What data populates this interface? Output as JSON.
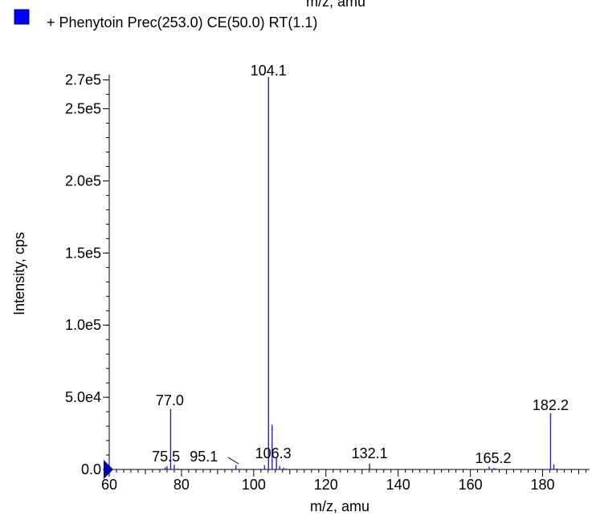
{
  "top_cut_label": "m/z, amu",
  "legend": {
    "marker_color": "#0000ff",
    "text": "+ Phenytoin Prec(253.0) CE(50.0) RT(1.1)"
  },
  "chart_data": {
    "type": "bar",
    "style": "stick spectrum",
    "xlabel": "m/z, amu",
    "ylabel": "Intensity, cps",
    "xlim": [
      60,
      193
    ],
    "ylim": [
      0,
      275000
    ],
    "x_ticks": [
      60,
      80,
      100,
      120,
      140,
      160,
      180
    ],
    "y_ticks": [
      {
        "value": 0,
        "label": "0.0"
      },
      {
        "value": 50000,
        "label": "5.0e4"
      },
      {
        "value": 100000,
        "label": "1.0e5"
      },
      {
        "value": 150000,
        "label": "1.5e5"
      },
      {
        "value": 200000,
        "label": "2.0e5"
      },
      {
        "value": 250000,
        "label": "2.5e5"
      },
      {
        "value": 270000,
        "label": "2.7e5"
      }
    ],
    "series_color": "#2222cc",
    "peaks": [
      {
        "x": 70.0,
        "y": 300
      },
      {
        "x": 75.5,
        "y": 1500
      },
      {
        "x": 76.0,
        "y": 2200
      },
      {
        "x": 77.0,
        "y": 42000
      },
      {
        "x": 78.0,
        "y": 3200
      },
      {
        "x": 79.0,
        "y": 700
      },
      {
        "x": 91.0,
        "y": 400
      },
      {
        "x": 95.1,
        "y": 3000
      },
      {
        "x": 103.0,
        "y": 3000
      },
      {
        "x": 104.1,
        "y": 272000
      },
      {
        "x": 105.1,
        "y": 31000
      },
      {
        "x": 106.3,
        "y": 8000
      },
      {
        "x": 107.2,
        "y": 2500
      },
      {
        "x": 108.3,
        "y": 1200
      },
      {
        "x": 109.0,
        "y": 600
      },
      {
        "x": 132.1,
        "y": 4000
      },
      {
        "x": 165.2,
        "y": 2000
      },
      {
        "x": 166.5,
        "y": 1000
      },
      {
        "x": 167.0,
        "y": 700
      },
      {
        "x": 182.2,
        "y": 39000
      },
      {
        "x": 183.1,
        "y": 3500
      },
      {
        "x": 184.0,
        "y": 600
      }
    ],
    "peak_labels": [
      {
        "x": 104.1,
        "text": "104.1"
      },
      {
        "x": 77.0,
        "text": "77.0"
      },
      {
        "x": 182.2,
        "text": "182.2"
      },
      {
        "x": 75.5,
        "text": "75.5"
      },
      {
        "x": 95.1,
        "text": "95.1"
      },
      {
        "x": 106.3,
        "text": "106.3"
      },
      {
        "x": 132.1,
        "text": "132.1"
      },
      {
        "x": 165.2,
        "text": "165.2"
      }
    ]
  }
}
